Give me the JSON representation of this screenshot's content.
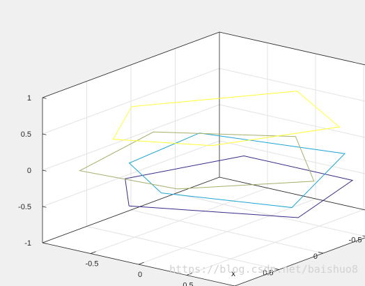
{
  "figure": {
    "background": "#f0f0f0",
    "axes_background": "#ffffff"
  },
  "chart_data": {
    "type": "line",
    "projection": "3d",
    "xlabel": "x",
    "ylabel": "",
    "zlabel": "",
    "xlim": [
      -1,
      1
    ],
    "ylim": [
      -1,
      1
    ],
    "zlim": [
      -1,
      1
    ],
    "x_ticks": [
      -0.5,
      0,
      0.5
    ],
    "y_ticks": [
      -0.5,
      0,
      0.5
    ],
    "z_ticks": [
      -1,
      -0.5,
      0,
      0.5,
      1
    ],
    "x_tick_labels": [
      "-0.5",
      "0",
      "0.5"
    ],
    "y_tick_labels": [
      "-0.5",
      "0",
      "0.5"
    ],
    "z_tick_labels": [
      "-1",
      "-0.5",
      "0",
      "0.5",
      "1"
    ],
    "grid": true,
    "series": [
      {
        "color": "#352a87",
        "closed": true,
        "points": [
          {
            "x": -0.45,
            "y": 0.62,
            "z": -0.5
          },
          {
            "x": -0.95,
            "y": 0.12,
            "z": -0.5
          },
          {
            "x": -0.58,
            "y": -0.82,
            "z": -0.5
          },
          {
            "x": 0.55,
            "y": -0.82,
            "z": -0.5
          },
          {
            "x": 0.85,
            "y": 0.12,
            "z": -0.5
          }
        ]
      },
      {
        "color": "#1ca4d4",
        "closed": true,
        "points": [
          {
            "x": -0.15,
            "y": 0.58,
            "z": -0.25
          },
          {
            "x": -0.88,
            "y": 0.15,
            "z": -0.25
          },
          {
            "x": -0.95,
            "y": -0.72,
            "z": -0.25
          },
          {
            "x": 0.35,
            "y": -0.95,
            "z": -0.25
          },
          {
            "x": 0.95,
            "y": 0.3,
            "z": -0.25
          }
        ]
      },
      {
        "color": "#a4b06a",
        "closed": true,
        "points": [
          {
            "x": 0.2,
            "y": 0.78,
            "z": 0.0
          },
          {
            "x": -0.75,
            "y": 0.85,
            "z": 0.0
          },
          {
            "x": -0.95,
            "y": -0.2,
            "z": 0.0
          },
          {
            "x": 0.05,
            "y": -0.72,
            "z": 0.0
          },
          {
            "x": 0.95,
            "y": 0.05,
            "z": 0.0
          }
        ]
      },
      {
        "color": "#ffff33",
        "closed": true,
        "points": [
          {
            "x": 0.3,
            "y": 0.5,
            "z": 0.5
          },
          {
            "x": -0.45,
            "y": 0.8,
            "z": 0.5
          },
          {
            "x": -0.9,
            "y": 0.1,
            "z": 0.5
          },
          {
            "x": -0.1,
            "y": -0.9,
            "z": 0.5
          },
          {
            "x": 0.8,
            "y": -0.4,
            "z": 0.5
          }
        ]
      }
    ]
  },
  "watermark": {
    "text": "https://blog.csdn.net/baishuo8"
  }
}
